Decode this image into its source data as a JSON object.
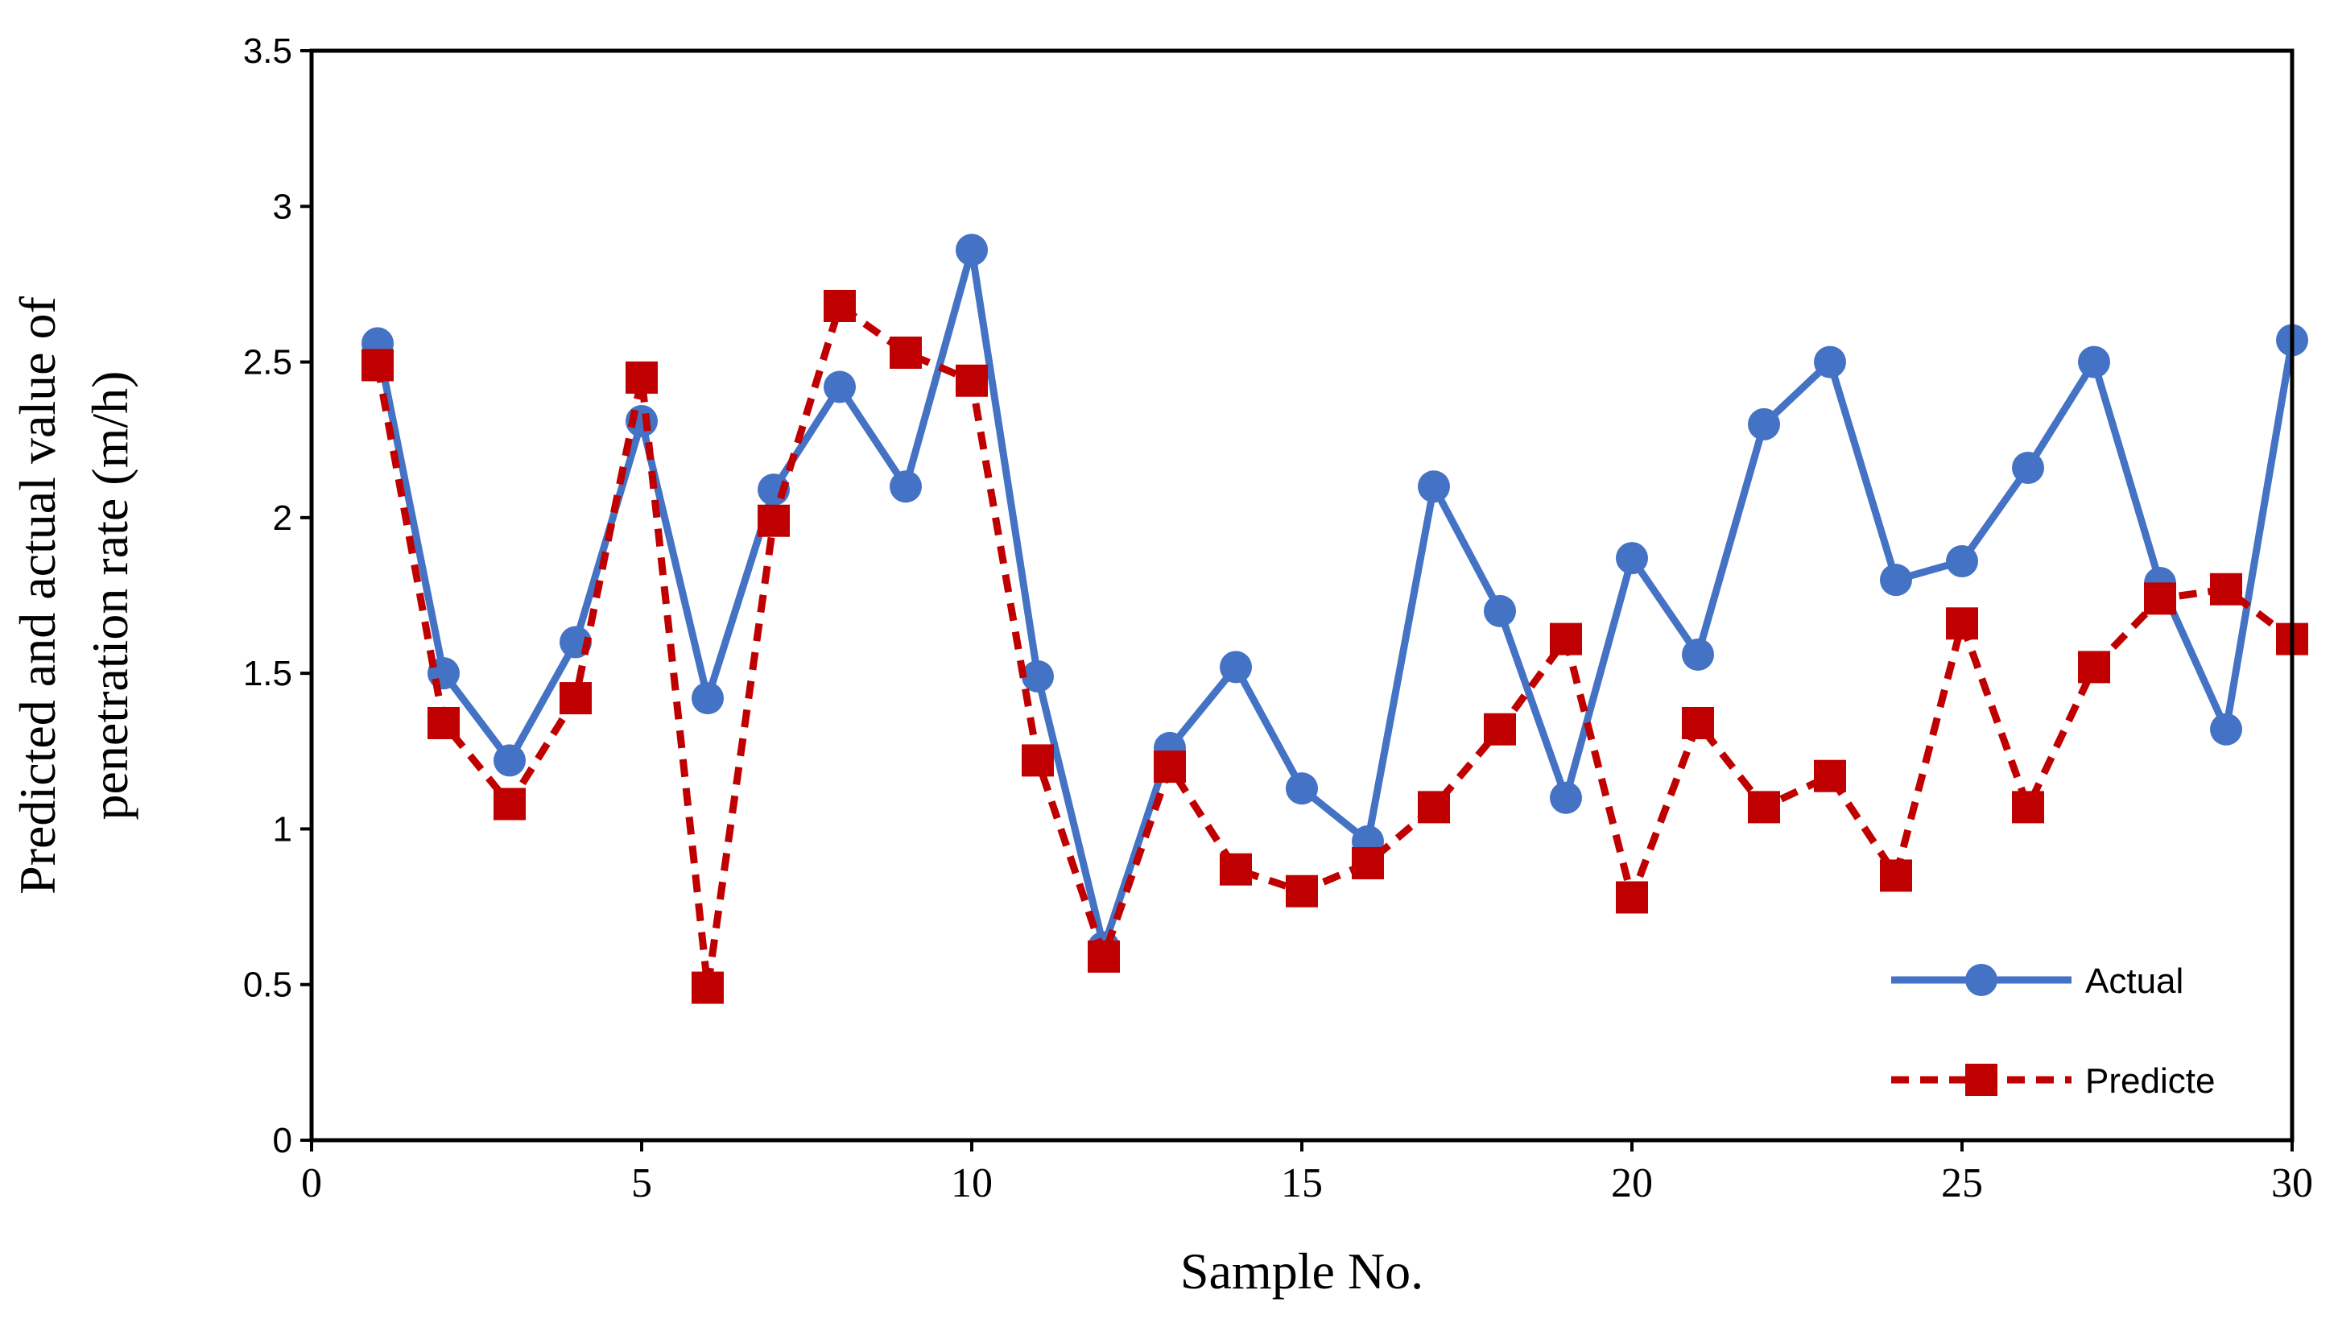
{
  "chart_data": {
    "type": "line",
    "title": "",
    "xlabel": "Sample No.",
    "ylabel_lines": [
      "Predicted and actual value of",
      "penetration rate (m/h)"
    ],
    "xlim": [
      0,
      30
    ],
    "ylim": [
      0,
      3.5
    ],
    "x_ticks": [
      "0",
      "5",
      "10",
      "15",
      "20",
      "25",
      "30"
    ],
    "y_ticks": [
      "0",
      "0.5",
      "1",
      "1.5",
      "2",
      "2.5",
      "3",
      "3.5"
    ],
    "grid": false,
    "legend_position": "bottom-right",
    "x": [
      1,
      2,
      3,
      4,
      5,
      6,
      7,
      8,
      9,
      10,
      11,
      12,
      13,
      14,
      15,
      16,
      17,
      18,
      19,
      20,
      21,
      22,
      23,
      24,
      25,
      26,
      27,
      28,
      29,
      30
    ],
    "series": [
      {
        "name": "Actual",
        "color": "#4472C4",
        "marker": "circle",
        "line": "solid",
        "values": [
          2.56,
          1.5,
          1.22,
          1.6,
          2.31,
          1.42,
          2.09,
          2.42,
          2.1,
          2.86,
          1.49,
          0.62,
          1.26,
          1.52,
          1.13,
          0.96,
          2.1,
          1.7,
          1.1,
          1.87,
          1.56,
          2.3,
          2.5,
          1.8,
          1.86,
          2.16,
          2.5,
          1.79,
          1.32,
          2.57
        ]
      },
      {
        "name": "Predicte",
        "color": "#C00000",
        "marker": "square",
        "line": "dashed",
        "values": [
          2.49,
          1.34,
          1.08,
          1.42,
          2.45,
          0.49,
          1.99,
          2.68,
          2.53,
          2.44,
          1.22,
          0.59,
          1.2,
          0.87,
          0.8,
          0.89,
          1.07,
          1.32,
          1.61,
          0.78,
          1.34,
          1.07,
          1.17,
          0.85,
          1.66,
          1.07,
          1.52,
          1.74,
          1.77,
          1.61
        ]
      }
    ]
  }
}
